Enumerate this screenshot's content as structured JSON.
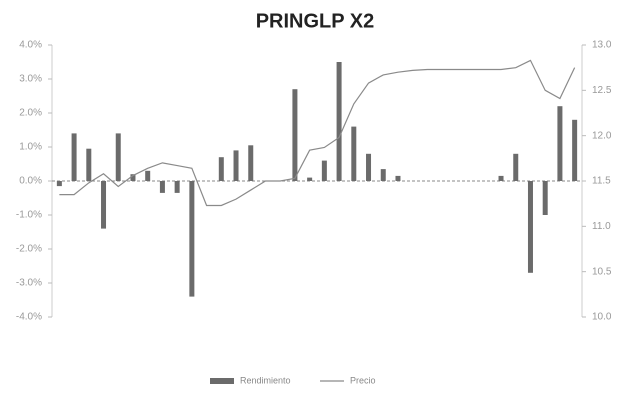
{
  "chart_data": {
    "type": "combo",
    "title": "PRINGLP X2",
    "categories": [
      null,
      null,
      null,
      null,
      null,
      null,
      null,
      null,
      null,
      null,
      null,
      null,
      null,
      null,
      null,
      null,
      null,
      null,
      null,
      null,
      null,
      null,
      null,
      null,
      null,
      null,
      null,
      null,
      null,
      null,
      null,
      null,
      null,
      null,
      null,
      null
    ],
    "series": [
      {
        "name": "Rendimiento",
        "type": "bar",
        "color": "#6b6b6b",
        "values": [
          -0.15,
          1.4,
          0.95,
          -1.4,
          1.4,
          0.2,
          0.3,
          -0.35,
          -0.35,
          -3.4,
          0,
          0.7,
          0.9,
          1.05,
          0,
          0,
          2.7,
          0.1,
          0.6,
          3.5,
          1.6,
          0.8,
          0.35,
          0.15,
          0,
          0,
          0,
          0,
          0,
          0,
          0.15,
          0.8,
          -2.7,
          -1.0,
          2.2,
          1.8
        ]
      },
      {
        "name": "Precio",
        "type": "line",
        "axis": "y2",
        "color": "#8a8a8a",
        "values": [
          11.35,
          11.35,
          11.48,
          11.58,
          11.44,
          11.56,
          11.64,
          11.7,
          11.67,
          11.64,
          11.23,
          11.23,
          11.3,
          11.4,
          11.5,
          11.5,
          11.53,
          11.84,
          11.87,
          11.98,
          12.35,
          12.58,
          12.67,
          12.7,
          12.72,
          12.73,
          12.73,
          12.73,
          12.73,
          12.73,
          12.73,
          12.75,
          12.83,
          12.5,
          12.41,
          12.75
        ]
      }
    ],
    "ylim": [
      -4,
      4
    ],
    "yticks": [
      {
        "value": 4,
        "label": "4.0%"
      },
      {
        "value": 3,
        "label": "3.0%"
      },
      {
        "value": 2,
        "label": "2.0%"
      },
      {
        "value": 1,
        "label": "1.0%"
      },
      {
        "value": 0,
        "label": "0.0%"
      },
      {
        "value": -1,
        "label": "-1.0%"
      },
      {
        "value": -2,
        "label": "-2.0%"
      },
      {
        "value": -3,
        "label": "-3.0%"
      },
      {
        "value": -4,
        "label": "-4.0%"
      }
    ],
    "y2lim": [
      10,
      13
    ],
    "y2ticks": [
      {
        "value": 13,
        "label": "13.0"
      },
      {
        "value": 12.5,
        "label": "12.5"
      },
      {
        "value": 12,
        "label": "12.0"
      },
      {
        "value": 11.5,
        "label": "11.5"
      },
      {
        "value": 11,
        "label": "11.0"
      },
      {
        "value": 10.5,
        "label": "10.5"
      },
      {
        "value": 10,
        "label": "10.0"
      }
    ]
  }
}
